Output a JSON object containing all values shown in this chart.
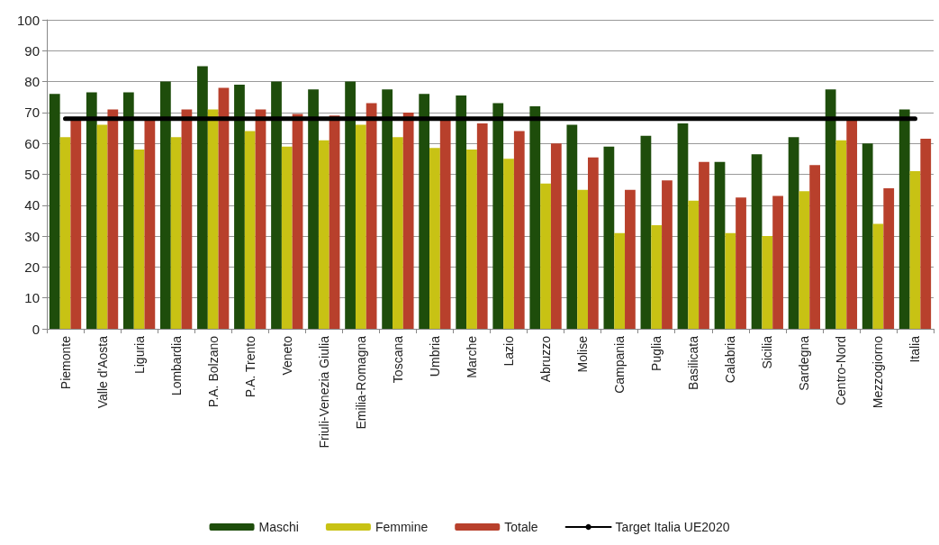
{
  "chart_data": {
    "type": "bar",
    "categories": [
      "Piemonte",
      "Valle d'Aosta",
      "Liguria",
      "Lombardia",
      "P.A. Bolzano",
      "P.A. Trento",
      "Veneto",
      "Friuli-Venezia Giulia",
      "Emilia-Romagna",
      "Toscana",
      "Umbria",
      "Marche",
      "Lazio",
      "Abruzzo",
      "Molise",
      "Campania",
      "Puglia",
      "Basilicata",
      "Calabria",
      "Sicilia",
      "Sardegna",
      "Centro-Nord",
      "Mezzogiorno",
      "Italia"
    ],
    "series": [
      {
        "name": "Maschi",
        "color": "#1e4d0b",
        "values": [
          76,
          76.5,
          76.5,
          80,
          85,
          79,
          80,
          77.5,
          80,
          77.5,
          76,
          75.5,
          73,
          72,
          66,
          59,
          62.5,
          66.5,
          54,
          56.5,
          62,
          77.5,
          60,
          71
        ]
      },
      {
        "name": "Femmine",
        "color": "#c8c214",
        "values": [
          62,
          66,
          58,
          62,
          71,
          64,
          59,
          61,
          66,
          62,
          58.5,
          58,
          55,
          47,
          45,
          31,
          33.5,
          41.5,
          31,
          30,
          44.5,
          61,
          34,
          51
        ]
      },
      {
        "name": "Totale",
        "color": "#b8402c",
        "values": [
          68,
          71,
          67.5,
          71,
          78,
          71,
          69.5,
          69,
          73,
          70,
          68,
          66.5,
          64,
          60,
          55.5,
          45,
          48,
          54,
          42.5,
          43,
          53,
          67.5,
          45.5,
          61.5
        ]
      },
      {
        "name": "Target Italia UE2020",
        "type": "line",
        "color": "#000000",
        "marker": "none",
        "values": [
          68,
          68,
          68,
          68,
          68,
          68,
          68,
          68,
          68,
          68,
          68,
          68,
          68,
          68,
          68,
          68,
          68,
          68,
          68,
          68,
          68,
          68,
          68,
          68
        ]
      }
    ],
    "ylim": [
      0,
      100
    ],
    "yticks": [
      0,
      10,
      20,
      30,
      40,
      50,
      60,
      70,
      80,
      90,
      100
    ],
    "grid": "y",
    "legend": "bottom"
  }
}
